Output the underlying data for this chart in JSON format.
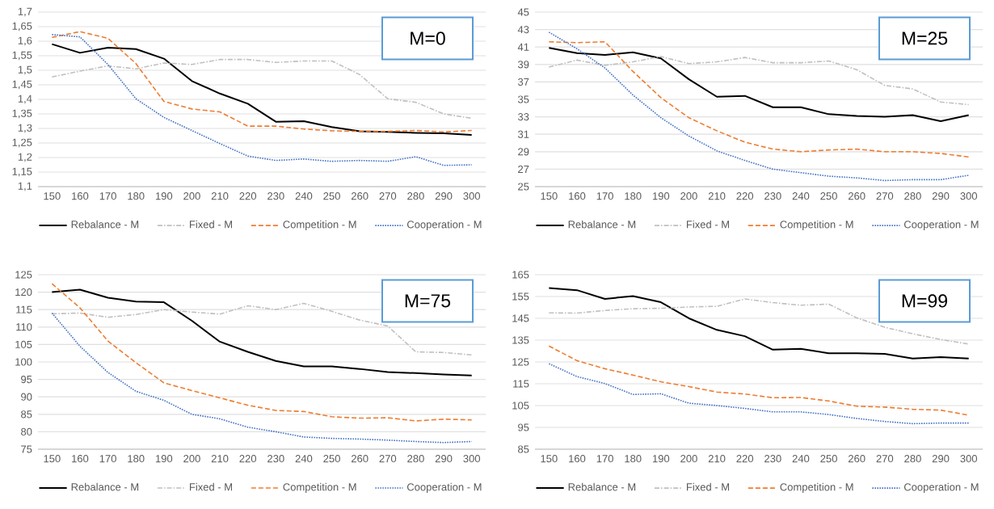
{
  "chart_data": [
    {
      "type": "line",
      "categories": [
        "150",
        "160",
        "170",
        "180",
        "190",
        "200",
        "210",
        "220",
        "230",
        "240",
        "250",
        "260",
        "270",
        "280",
        "290",
        "300"
      ],
      "ylim": [
        1.1,
        1.7
      ],
      "yticks": [
        {
          "value": 1.1,
          "label": "1,1"
        },
        {
          "value": 1.15,
          "label": "1,15"
        },
        {
          "value": 1.2,
          "label": "1,2"
        },
        {
          "value": 1.25,
          "label": "1,25"
        },
        {
          "value": 1.3,
          "label": "1,3"
        },
        {
          "value": 1.35,
          "label": "1,35"
        },
        {
          "value": 1.4,
          "label": "1,4"
        },
        {
          "value": 1.45,
          "label": "1,45"
        },
        {
          "value": 1.5,
          "label": "1,5"
        },
        {
          "value": 1.55,
          "label": "1,55"
        },
        {
          "value": 1.6,
          "label": "1,6"
        },
        {
          "value": 1.65,
          "label": "1,65"
        },
        {
          "value": 1.7,
          "label": "1,7"
        }
      ],
      "grid": "y",
      "legend": "bottom",
      "annotations": [
        "M=0"
      ],
      "series": [
        {
          "name": "Rebalance - M",
          "color": "#000000",
          "line_style": "solid",
          "values": [
            1.59,
            1.56,
            1.578,
            1.573,
            1.54,
            1.463,
            1.42,
            1.385,
            1.323,
            1.325,
            1.305,
            1.29,
            1.288,
            1.285,
            1.283,
            1.278
          ]
        },
        {
          "name": "Fixed - M",
          "color": "#c0c0c0",
          "line_style": "dashdot",
          "values": [
            1.477,
            1.497,
            1.515,
            1.505,
            1.525,
            1.52,
            1.537,
            1.537,
            1.527,
            1.532,
            1.532,
            1.485,
            1.402,
            1.39,
            1.35,
            1.335
          ]
        },
        {
          "name": "Competition - M",
          "color": "#ed7d31",
          "line_style": "dashed",
          "values": [
            1.613,
            1.633,
            1.61,
            1.523,
            1.393,
            1.367,
            1.357,
            1.308,
            1.308,
            1.298,
            1.292,
            1.29,
            1.29,
            1.293,
            1.288,
            1.293
          ]
        },
        {
          "name": "Cooperation - M",
          "color": "#4472c4",
          "line_style": "dotted",
          "values": [
            1.623,
            1.615,
            1.52,
            1.402,
            1.338,
            1.293,
            1.248,
            1.205,
            1.19,
            1.195,
            1.187,
            1.19,
            1.187,
            1.203,
            1.173,
            1.175
          ]
        }
      ]
    },
    {
      "type": "line",
      "categories": [
        "150",
        "160",
        "170",
        "180",
        "190",
        "200",
        "210",
        "220",
        "230",
        "240",
        "250",
        "260",
        "270",
        "280",
        "290",
        "300"
      ],
      "ylim": [
        25,
        45
      ],
      "yticks": [
        25,
        27,
        29,
        31,
        33,
        35,
        37,
        39,
        41,
        43,
        45
      ],
      "grid": "y",
      "legend": "bottom",
      "annotations": [
        "M=25"
      ],
      "series": [
        {
          "name": "Rebalance - M",
          "color": "#000000",
          "line_style": "solid",
          "values": [
            40.9,
            40.3,
            40.1,
            40.4,
            39.7,
            37.3,
            35.3,
            35.4,
            34.1,
            34.1,
            33.3,
            33.1,
            33.0,
            33.2,
            32.5,
            33.2
          ]
        },
        {
          "name": "Fixed - M",
          "color": "#c0c0c0",
          "line_style": "dashdot",
          "values": [
            38.7,
            39.5,
            38.9,
            39.3,
            39.9,
            39.1,
            39.3,
            39.8,
            39.2,
            39.2,
            39.4,
            38.4,
            36.6,
            36.2,
            34.7,
            34.4
          ]
        },
        {
          "name": "Competition - M",
          "color": "#ed7d31",
          "line_style": "dashed",
          "values": [
            41.6,
            41.5,
            41.6,
            38.2,
            35.2,
            32.9,
            31.4,
            30.1,
            29.3,
            29.0,
            29.2,
            29.3,
            29.0,
            29.0,
            28.8,
            28.4
          ]
        },
        {
          "name": "Cooperation - M",
          "color": "#4472c4",
          "line_style": "dotted",
          "values": [
            42.7,
            40.8,
            38.6,
            35.5,
            32.9,
            30.8,
            29.1,
            28.0,
            27.0,
            26.6,
            26.2,
            26.0,
            25.7,
            25.8,
            25.8,
            26.3
          ]
        }
      ]
    },
    {
      "type": "line",
      "categories": [
        "150",
        "160",
        "170",
        "180",
        "190",
        "200",
        "210",
        "220",
        "230",
        "240",
        "250",
        "260",
        "270",
        "280",
        "290",
        "300"
      ],
      "ylim": [
        75,
        125
      ],
      "yticks": [
        75,
        80,
        85,
        90,
        95,
        100,
        105,
        110,
        115,
        120,
        125
      ],
      "grid": "y",
      "legend": "bottom",
      "annotations": [
        "M=75"
      ],
      "series": [
        {
          "name": "Rebalance - M",
          "color": "#000000",
          "line_style": "solid",
          "values": [
            120,
            120.7,
            118.4,
            117.3,
            117.1,
            111.8,
            105.8,
            102.9,
            100.3,
            98.7,
            98.7,
            98.0,
            97.1,
            96.8,
            96.4,
            96.1
          ]
        },
        {
          "name": "Fixed - M",
          "color": "#c0c0c0",
          "line_style": "dashdot",
          "values": [
            113.8,
            114,
            112.8,
            113.6,
            115,
            114.3,
            113.7,
            116.1,
            115,
            116.8,
            114.5,
            112,
            110.3,
            102.9,
            102.7,
            102
          ]
        },
        {
          "name": "Competition - M",
          "color": "#ed7d31",
          "line_style": "dashed",
          "values": [
            122.4,
            115.5,
            106,
            99.8,
            94,
            91.8,
            89.7,
            87.6,
            86.1,
            85.8,
            84.3,
            83.9,
            84,
            83.1,
            83.6,
            83.4
          ]
        },
        {
          "name": "Cooperation - M",
          "color": "#4472c4",
          "line_style": "dotted",
          "values": [
            114,
            104.5,
            97,
            91.6,
            89,
            85,
            83.7,
            81.3,
            80,
            78.5,
            78.1,
            77.9,
            77.6,
            77.2,
            76.9,
            77.2
          ]
        }
      ]
    },
    {
      "type": "line",
      "categories": [
        "150",
        "160",
        "170",
        "180",
        "190",
        "200",
        "210",
        "220",
        "230",
        "240",
        "250",
        "260",
        "270",
        "280",
        "290",
        "300"
      ],
      "ylim": [
        85,
        165
      ],
      "yticks": [
        85,
        95,
        105,
        115,
        125,
        135,
        145,
        155,
        165
      ],
      "grid": "y",
      "legend": "bottom",
      "annotations": [
        "M=99"
      ],
      "series": [
        {
          "name": "Rebalance - M",
          "color": "#000000",
          "line_style": "solid",
          "values": [
            158.9,
            157.9,
            153.9,
            155.2,
            152.4,
            145,
            139.7,
            136.8,
            130.6,
            131,
            129,
            129,
            128.7,
            126.6,
            127.2,
            126.6
          ]
        },
        {
          "name": "Fixed - M",
          "color": "#c0c0c0",
          "line_style": "dashdot",
          "values": [
            147.5,
            147.4,
            148.6,
            149.4,
            149.6,
            150.2,
            150.5,
            153.9,
            152.2,
            151,
            151.5,
            145.2,
            140.9,
            137.9,
            135.3,
            133.2
          ]
        },
        {
          "name": "Competition - M",
          "color": "#ed7d31",
          "line_style": "dashed",
          "values": [
            132.3,
            125.6,
            121.9,
            119,
            115.9,
            113.7,
            111.2,
            110.3,
            108.6,
            108.7,
            107.1,
            104.7,
            104.3,
            103.3,
            102.9,
            100.6
          ]
        },
        {
          "name": "Cooperation - M",
          "color": "#4472c4",
          "line_style": "dotted",
          "values": [
            124.2,
            118.3,
            115.1,
            110.1,
            110.4,
            106.1,
            105,
            103.7,
            102.1,
            102.1,
            100.9,
            99.1,
            97.7,
            96.7,
            97,
            97
          ]
        }
      ]
    }
  ]
}
